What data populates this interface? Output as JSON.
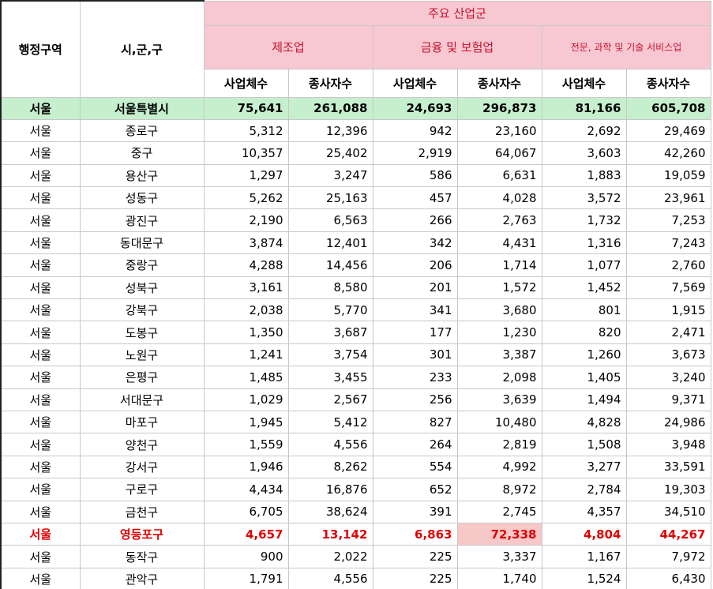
{
  "header": {
    "region": "행정구역",
    "district": "시,군,구",
    "industry_group": "주요 산업군",
    "industries": [
      "제조업",
      "금융 및 보험업",
      "전문, 과학 및 기술 서비스업"
    ],
    "subcols": [
      "사업체수",
      "종사자수",
      "사업체수",
      "종사자수",
      "사업체수",
      "종사자수"
    ]
  },
  "total": {
    "region": "서울",
    "district": "서울특별시",
    "values": [
      "75,641",
      "261,088",
      "24,693",
      "296,873",
      "81,166",
      "605,708"
    ]
  },
  "rows": [
    {
      "region": "서울",
      "district": "종로구",
      "values": [
        "5,312",
        "12,396",
        "942",
        "23,160",
        "2,692",
        "29,469"
      ]
    },
    {
      "region": "서울",
      "district": "중구",
      "values": [
        "10,357",
        "25,402",
        "2,919",
        "64,067",
        "3,603",
        "42,260"
      ]
    },
    {
      "region": "서울",
      "district": "용산구",
      "values": [
        "1,297",
        "3,247",
        "586",
        "6,631",
        "1,883",
        "19,059"
      ]
    },
    {
      "region": "서울",
      "district": "성동구",
      "values": [
        "5,262",
        "25,163",
        "457",
        "4,028",
        "3,572",
        "23,961"
      ]
    },
    {
      "region": "서울",
      "district": "광진구",
      "values": [
        "2,190",
        "6,563",
        "266",
        "2,763",
        "1,732",
        "7,253"
      ]
    },
    {
      "region": "서울",
      "district": "동대문구",
      "values": [
        "3,874",
        "12,401",
        "342",
        "4,431",
        "1,316",
        "7,243"
      ]
    },
    {
      "region": "서울",
      "district": "중랑구",
      "values": [
        "4,288",
        "14,456",
        "206",
        "1,714",
        "1,077",
        "2,760"
      ]
    },
    {
      "region": "서울",
      "district": "성북구",
      "values": [
        "3,161",
        "8,580",
        "201",
        "1,572",
        "1,452",
        "7,569"
      ]
    },
    {
      "region": "서울",
      "district": "강북구",
      "values": [
        "2,038",
        "5,770",
        "341",
        "3,680",
        "801",
        "1,915"
      ]
    },
    {
      "region": "서울",
      "district": "도봉구",
      "values": [
        "1,350",
        "3,687",
        "177",
        "1,230",
        "820",
        "2,471"
      ]
    },
    {
      "region": "서울",
      "district": "노원구",
      "values": [
        "1,241",
        "3,754",
        "301",
        "3,387",
        "1,260",
        "3,673"
      ]
    },
    {
      "region": "서울",
      "district": "은평구",
      "values": [
        "1,485",
        "3,455",
        "233",
        "2,098",
        "1,405",
        "3,240"
      ]
    },
    {
      "region": "서울",
      "district": "서대문구",
      "values": [
        "1,029",
        "2,567",
        "256",
        "3,639",
        "1,494",
        "9,371"
      ]
    },
    {
      "region": "서울",
      "district": "마포구",
      "values": [
        "1,945",
        "5,412",
        "827",
        "10,480",
        "4,828",
        "24,986"
      ]
    },
    {
      "region": "서울",
      "district": "양천구",
      "values": [
        "1,559",
        "4,556",
        "264",
        "2,819",
        "1,508",
        "3,948"
      ]
    },
    {
      "region": "서울",
      "district": "강서구",
      "values": [
        "1,946",
        "8,262",
        "554",
        "4,992",
        "3,277",
        "33,591"
      ]
    },
    {
      "region": "서울",
      "district": "구로구",
      "values": [
        "4,434",
        "16,876",
        "652",
        "8,972",
        "2,784",
        "19,303"
      ]
    },
    {
      "region": "서울",
      "district": "금천구",
      "values": [
        "6,705",
        "38,624",
        "391",
        "2,745",
        "4,357",
        "34,510"
      ]
    }
  ],
  "highlight": {
    "region": "서울",
    "district": "영등포구",
    "values": [
      "4,657",
      "13,142",
      "6,863",
      "72,338",
      "4,804",
      "44,267"
    ]
  },
  "rows_after": [
    {
      "region": "서울",
      "district": "동작구",
      "values": [
        "900",
        "2,022",
        "225",
        "3,337",
        "1,167",
        "7,972"
      ]
    },
    {
      "region": "서울",
      "district": "관악구",
      "values": [
        "1,791",
        "4,556",
        "225",
        "1,740",
        "1,524",
        "6,430"
      ]
    }
  ],
  "colors": {
    "header_pink": "#f7c8d2",
    "header_text": "#c8102e",
    "total_green": "#c6efce",
    "highlight_red": "#e10000"
  }
}
